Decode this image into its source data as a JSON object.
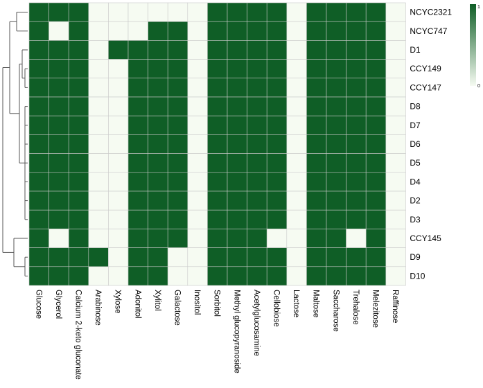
{
  "chart_data": {
    "type": "heatmap",
    "title": "",
    "xlabel": "",
    "ylabel": "",
    "colors": {
      "high": "#0f5e26",
      "low": "#f6fbf2",
      "grid": "#c9c9c9"
    },
    "rows": [
      "NCYC2321",
      "NCYC747",
      "D1",
      "CCY149",
      "CCY147",
      "D8",
      "D7",
      "D6",
      "D5",
      "D4",
      "D2",
      "D3",
      "CCY145",
      "D9",
      "D10"
    ],
    "columns": [
      "Glucose",
      "Glycerol",
      "Calcium 2-keto gluconate",
      "Arabinose",
      "Xylose",
      "Adonitol",
      "Xylitol",
      "Galactose",
      "Inositol",
      "Sorbitol",
      "Methyl glucopyranoside",
      "Acetylglucosamine",
      "Cellobiose",
      "Lactose",
      "Maltose",
      "Saccharose",
      "Trehalose",
      "Melezitose",
      "Raffinose"
    ],
    "values": [
      [
        1,
        1,
        1,
        0,
        0,
        0,
        0,
        0,
        0,
        1,
        1,
        1,
        1,
        0,
        1,
        1,
        1,
        1,
        0
      ],
      [
        1,
        0,
        1,
        0,
        0,
        0,
        1,
        1,
        0,
        1,
        1,
        1,
        1,
        0,
        1,
        1,
        1,
        1,
        0
      ],
      [
        1,
        1,
        1,
        0,
        1,
        1,
        1,
        1,
        0,
        1,
        1,
        1,
        1,
        0,
        1,
        1,
        1,
        1,
        0
      ],
      [
        1,
        1,
        1,
        0,
        0,
        1,
        1,
        1,
        0,
        1,
        1,
        1,
        1,
        0,
        1,
        1,
        1,
        1,
        0
      ],
      [
        1,
        1,
        1,
        0,
        0,
        1,
        1,
        1,
        0,
        1,
        1,
        1,
        1,
        0,
        1,
        1,
        1,
        1,
        0
      ],
      [
        1,
        1,
        1,
        0,
        0,
        1,
        1,
        1,
        0,
        1,
        1,
        1,
        1,
        0,
        1,
        1,
        1,
        1,
        0
      ],
      [
        1,
        1,
        1,
        0,
        0,
        1,
        1,
        1,
        0,
        1,
        1,
        1,
        1,
        0,
        1,
        1,
        1,
        1,
        0
      ],
      [
        1,
        1,
        1,
        0,
        0,
        1,
        1,
        1,
        0,
        1,
        1,
        1,
        1,
        0,
        1,
        1,
        1,
        1,
        0
      ],
      [
        1,
        1,
        1,
        0,
        0,
        1,
        1,
        1,
        0,
        1,
        1,
        1,
        1,
        0,
        1,
        1,
        1,
        1,
        0
      ],
      [
        1,
        1,
        1,
        0,
        0,
        1,
        1,
        1,
        0,
        1,
        1,
        1,
        1,
        0,
        1,
        1,
        1,
        1,
        0
      ],
      [
        1,
        1,
        1,
        0,
        0,
        1,
        1,
        1,
        0,
        1,
        1,
        1,
        1,
        0,
        1,
        1,
        1,
        1,
        0
      ],
      [
        1,
        1,
        1,
        0,
        0,
        1,
        1,
        1,
        0,
        1,
        1,
        1,
        1,
        0,
        1,
        1,
        1,
        1,
        0
      ],
      [
        1,
        0,
        1,
        0,
        0,
        1,
        1,
        1,
        0,
        1,
        1,
        1,
        0,
        0,
        1,
        1,
        0,
        1,
        0
      ],
      [
        1,
        1,
        1,
        1,
        0,
        1,
        1,
        0,
        0,
        1,
        1,
        1,
        1,
        0,
        1,
        1,
        1,
        1,
        0
      ],
      [
        1,
        1,
        1,
        0,
        0,
        1,
        1,
        0,
        0,
        1,
        1,
        1,
        1,
        0,
        1,
        1,
        1,
        1,
        0
      ]
    ],
    "legend": {
      "placement": "right",
      "min": 0,
      "max": 1,
      "tick_labels": [
        "1",
        "0"
      ]
    },
    "dendrogram": "left"
  }
}
